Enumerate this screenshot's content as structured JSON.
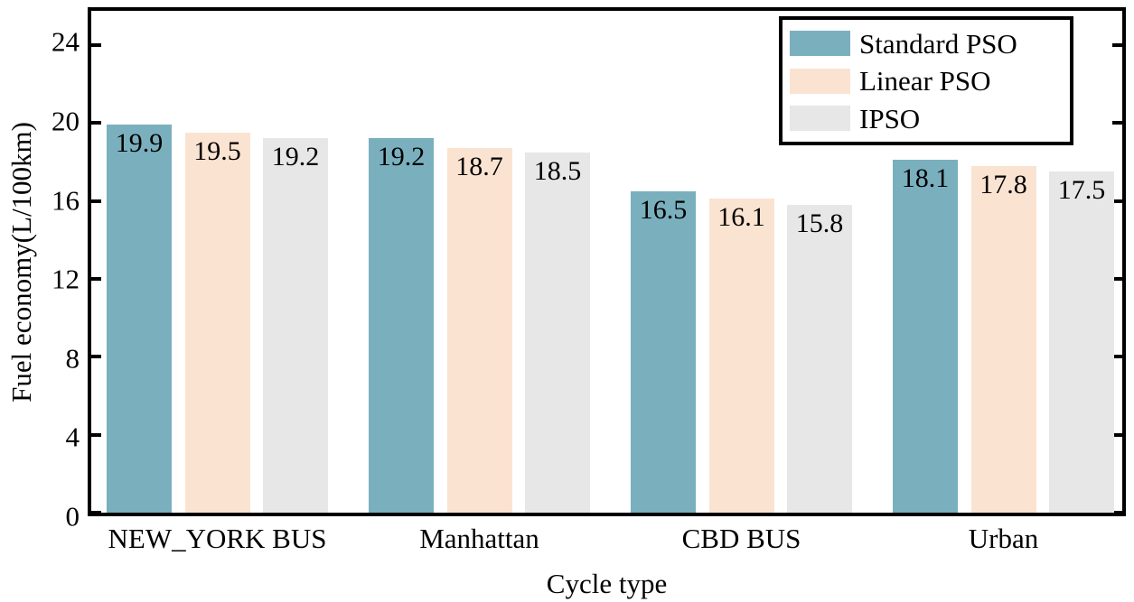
{
  "chart_data": {
    "type": "bar",
    "title": "",
    "xlabel": "Cycle type",
    "ylabel": "Fuel economy(L/100km)",
    "categories": [
      "NEW_YORK BUS",
      "Manhattan",
      "CBD BUS",
      "Urban"
    ],
    "series": [
      {
        "name": "Standard PSO",
        "color": "#7AAFBE",
        "values": [
          19.9,
          19.2,
          16.5,
          18.1
        ]
      },
      {
        "name": "Linear PSO",
        "color": "#FBE3D1",
        "values": [
          19.5,
          18.7,
          16.1,
          17.8
        ]
      },
      {
        "name": "IPSO",
        "color": "#E7E7E7",
        "values": [
          19.2,
          18.5,
          15.8,
          17.5
        ]
      }
    ],
    "yticks": [
      0,
      4,
      8,
      12,
      16,
      20,
      24
    ],
    "ylim": [
      0,
      25.75
    ],
    "grid": false,
    "legend_position": "top-right",
    "bar_value_labels": true,
    "frame_color": "#000000",
    "tick_direction": "in"
  }
}
